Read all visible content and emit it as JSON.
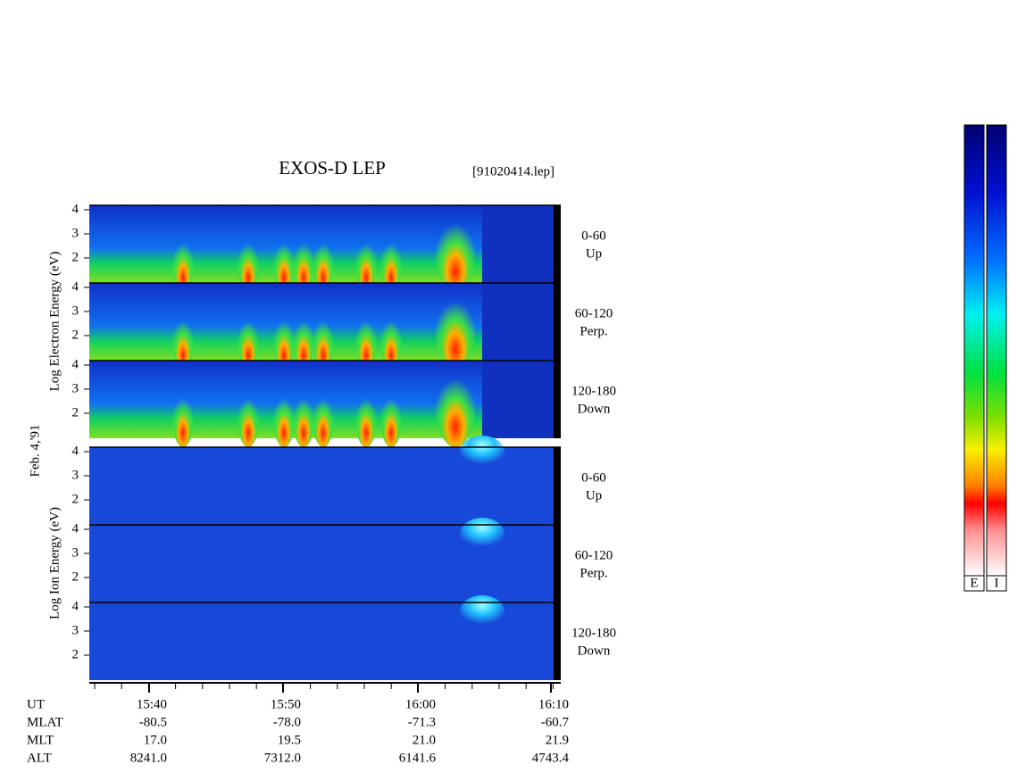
{
  "header": {
    "title": "EXOS-D LEP",
    "file": "[91020414.lep]"
  },
  "date": "Feb. 4,'91",
  "groups": [
    {
      "axis_label": "Log Electron Energy (eV)",
      "panels": [
        {
          "angle": "0-60",
          "direction": "Up",
          "yticks": [
            "2",
            "3",
            "4"
          ]
        },
        {
          "angle": "60-120",
          "direction": "Perp.",
          "yticks": [
            "2",
            "3",
            "4"
          ]
        },
        {
          "angle": "120-180",
          "direction": "Down",
          "yticks": [
            "2",
            "3",
            "4"
          ]
        }
      ]
    },
    {
      "axis_label": "Log Ion Energy (eV)",
      "panels": [
        {
          "angle": "0-60",
          "direction": "Up",
          "yticks": [
            "2",
            "3",
            "4"
          ]
        },
        {
          "angle": "60-120",
          "direction": "Perp.",
          "yticks": [
            "2",
            "3",
            "4"
          ]
        },
        {
          "angle": "120-180",
          "direction": "Down",
          "yticks": [
            "2",
            "3",
            "4"
          ]
        }
      ]
    }
  ],
  "table": {
    "rows": [
      {
        "label": "UT",
        "values": [
          "15:40",
          "15:50",
          "16:00",
          "16:10"
        ]
      },
      {
        "label": "MLAT",
        "values": [
          "-80.5",
          "-78.0",
          "-71.3",
          "-60.7"
        ]
      },
      {
        "label": "MLT",
        "values": [
          "17.0",
          "19.5",
          "21.0",
          "21.9"
        ]
      },
      {
        "label": "ALT",
        "values": [
          "8241.0",
          "7312.0",
          "6141.6",
          "4743.4"
        ]
      }
    ]
  },
  "colorbars": [
    "E",
    "I"
  ]
}
